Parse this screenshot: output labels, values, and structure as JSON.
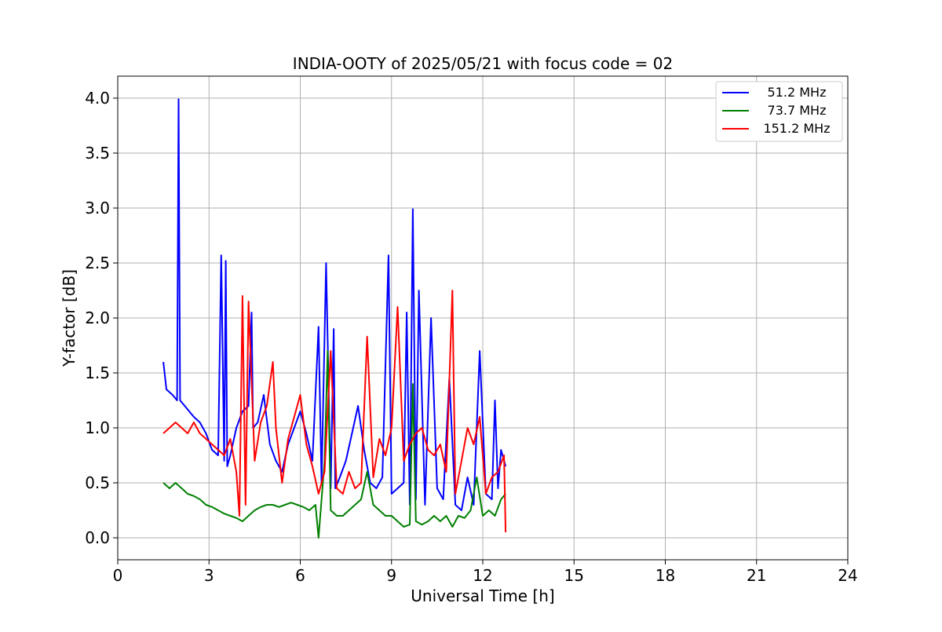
{
  "chart_data": {
    "type": "line",
    "title": "INDIA-OOTY of 2025/05/21 with focus code = 02",
    "xlabel": "Universal Time [h]",
    "ylabel": "Y-factor [dB]",
    "xlim": [
      0,
      24
    ],
    "ylim": [
      -0.2,
      4.2
    ],
    "xticks": [
      0,
      3,
      6,
      9,
      12,
      15,
      18,
      21,
      24
    ],
    "xtick_labels": [
      "0",
      "3",
      "6",
      "9",
      "12",
      "15",
      "18",
      "21",
      "24"
    ],
    "yticks": [
      0.0,
      0.5,
      1.0,
      1.5,
      2.0,
      2.5,
      3.0,
      3.5,
      4.0
    ],
    "ytick_labels": [
      "0.0",
      "0.5",
      "1.0",
      "1.5",
      "2.0",
      "2.5",
      "3.0",
      "3.5",
      "4.0"
    ],
    "grid": true,
    "legend_position": "top-right",
    "series": [
      {
        "name": "51.2 MHz",
        "color": "#0000ff",
        "x": [
          1.5,
          1.6,
          1.8,
          1.95,
          2.0,
          2.05,
          2.2,
          2.35,
          2.5,
          2.7,
          2.9,
          3.1,
          3.3,
          3.4,
          3.5,
          3.55,
          3.6,
          3.7,
          3.9,
          4.1,
          4.3,
          4.4,
          4.45,
          4.6,
          4.8,
          5.0,
          5.2,
          5.4,
          5.6,
          5.8,
          6.0,
          6.2,
          6.4,
          6.6,
          6.7,
          6.85,
          7.0,
          7.1,
          7.15,
          7.3,
          7.5,
          7.7,
          7.9,
          8.1,
          8.3,
          8.5,
          8.7,
          8.9,
          9.0,
          9.2,
          9.4,
          9.5,
          9.6,
          9.7,
          9.8,
          9.9,
          10.1,
          10.3,
          10.5,
          10.7,
          10.9,
          11.1,
          11.3,
          11.5,
          11.7,
          11.9,
          12.1,
          12.3,
          12.4,
          12.5,
          12.6,
          12.75
        ],
        "y": [
          1.6,
          1.35,
          1.3,
          1.25,
          3.99,
          1.25,
          1.2,
          1.15,
          1.1,
          1.05,
          0.95,
          0.8,
          0.75,
          2.57,
          0.7,
          2.52,
          0.65,
          0.75,
          1.0,
          1.15,
          1.2,
          2.05,
          1.0,
          1.05,
          1.3,
          0.85,
          0.7,
          0.6,
          0.85,
          1.0,
          1.15,
          0.95,
          0.7,
          1.92,
          0.5,
          2.5,
          0.45,
          1.9,
          0.45,
          0.55,
          0.7,
          0.95,
          1.2,
          0.8,
          0.5,
          0.45,
          0.55,
          2.57,
          0.4,
          0.45,
          0.5,
          2.05,
          0.3,
          2.99,
          0.35,
          2.25,
          0.3,
          2.0,
          0.45,
          0.35,
          1.45,
          0.3,
          0.25,
          0.55,
          0.3,
          1.7,
          0.4,
          0.35,
          1.25,
          0.45,
          0.8,
          0.65
        ]
      },
      {
        "name": "73.7 MHz",
        "color": "#008000",
        "x": [
          1.5,
          1.7,
          1.9,
          2.1,
          2.3,
          2.5,
          2.7,
          2.9,
          3.1,
          3.3,
          3.5,
          3.7,
          3.9,
          4.1,
          4.3,
          4.5,
          4.7,
          4.9,
          5.1,
          5.3,
          5.5,
          5.7,
          5.9,
          6.1,
          6.3,
          6.5,
          6.6,
          6.8,
          6.9,
          7.0,
          7.2,
          7.4,
          7.6,
          7.8,
          8.0,
          8.2,
          8.4,
          8.6,
          8.8,
          9.0,
          9.2,
          9.4,
          9.6,
          9.7,
          9.8,
          10.0,
          10.2,
          10.4,
          10.6,
          10.8,
          11.0,
          11.2,
          11.4,
          11.6,
          11.8,
          12.0,
          12.2,
          12.4,
          12.6,
          12.75
        ],
        "y": [
          0.5,
          0.45,
          0.5,
          0.45,
          0.4,
          0.38,
          0.35,
          0.3,
          0.28,
          0.25,
          0.22,
          0.2,
          0.18,
          0.15,
          0.2,
          0.25,
          0.28,
          0.3,
          0.3,
          0.28,
          0.3,
          0.32,
          0.3,
          0.28,
          0.25,
          0.3,
          0.0,
          0.7,
          1.7,
          0.25,
          0.2,
          0.2,
          0.25,
          0.3,
          0.35,
          0.6,
          0.3,
          0.25,
          0.2,
          0.2,
          0.15,
          0.1,
          0.12,
          1.4,
          0.15,
          0.12,
          0.15,
          0.2,
          0.15,
          0.2,
          0.1,
          0.2,
          0.18,
          0.25,
          0.55,
          0.2,
          0.25,
          0.2,
          0.35,
          0.4
        ]
      },
      {
        "name": "151.2 MHz",
        "color": "#ff0000",
        "x": [
          1.5,
          1.7,
          1.9,
          2.1,
          2.3,
          2.5,
          2.7,
          2.9,
          3.1,
          3.3,
          3.5,
          3.7,
          3.9,
          4.0,
          4.1,
          4.2,
          4.3,
          4.5,
          4.7,
          4.9,
          5.1,
          5.2,
          5.4,
          5.6,
          5.8,
          6.0,
          6.2,
          6.4,
          6.6,
          6.8,
          7.0,
          7.2,
          7.4,
          7.6,
          7.8,
          8.0,
          8.2,
          8.4,
          8.6,
          8.8,
          9.0,
          9.2,
          9.4,
          9.6,
          9.8,
          10.0,
          10.2,
          10.4,
          10.6,
          10.8,
          11.0,
          11.1,
          11.3,
          11.5,
          11.7,
          11.9,
          12.1,
          12.3,
          12.5,
          12.7,
          12.75
        ],
        "y": [
          0.95,
          1.0,
          1.05,
          1.0,
          0.95,
          1.05,
          0.95,
          0.9,
          0.85,
          0.8,
          0.75,
          0.9,
          0.6,
          0.2,
          2.2,
          0.3,
          2.15,
          0.7,
          1.05,
          1.2,
          1.6,
          1.0,
          0.5,
          0.9,
          1.1,
          1.3,
          0.85,
          0.65,
          0.4,
          0.6,
          1.7,
          0.45,
          0.4,
          0.6,
          0.45,
          0.5,
          1.83,
          0.55,
          0.9,
          0.75,
          1.0,
          2.1,
          0.7,
          0.85,
          0.95,
          1.0,
          0.8,
          0.75,
          0.85,
          0.6,
          2.25,
          0.4,
          0.7,
          1.0,
          0.85,
          1.1,
          0.4,
          0.55,
          0.6,
          0.75,
          0.05
        ]
      }
    ]
  }
}
